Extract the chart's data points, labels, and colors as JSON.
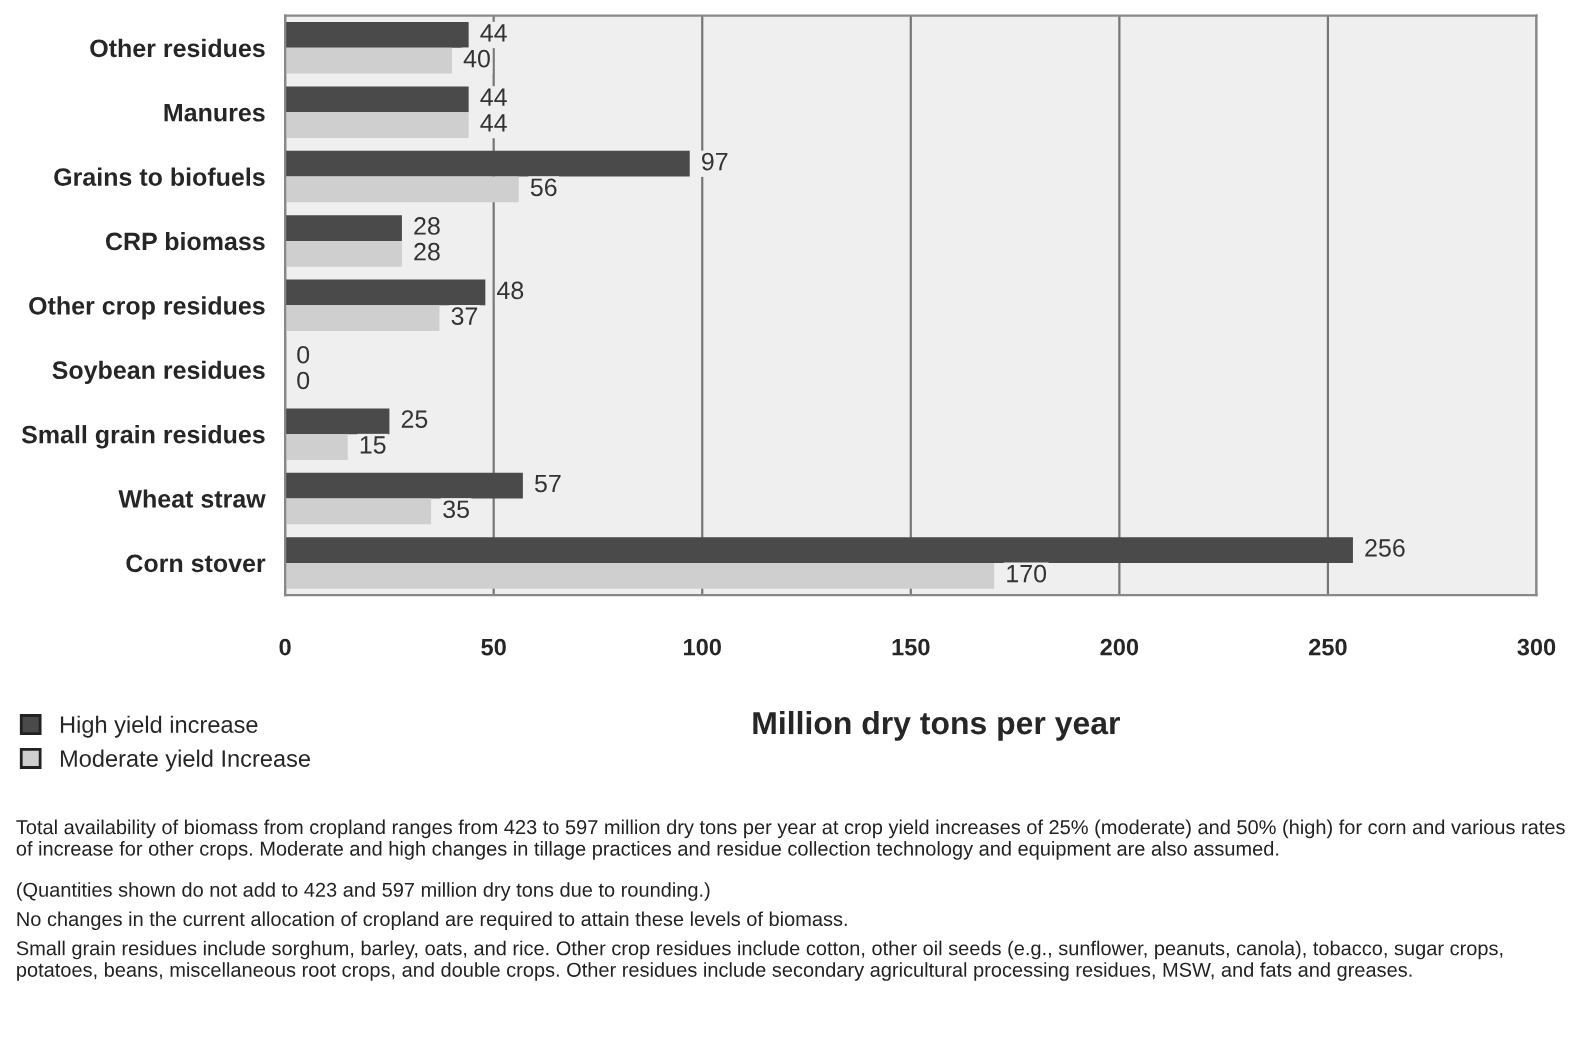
{
  "chart_data": {
    "type": "bar",
    "orientation": "horizontal",
    "categories": [
      "Other residues",
      "Manures",
      "Grains to biofuels",
      "CRP biomass",
      "Other crop residues",
      "Soybean residues",
      "Small grain residues",
      "Wheat straw",
      "Corn stover"
    ],
    "series": [
      {
        "name": "High yield increase",
        "color": "#4a4a4a",
        "values": [
          44,
          44,
          97,
          28,
          48,
          0,
          25,
          57,
          256
        ]
      },
      {
        "name": "Moderate yield Increase",
        "color": "#cfcfcf",
        "values": [
          40,
          44,
          56,
          28,
          37,
          0,
          15,
          35,
          170
        ]
      }
    ],
    "xlim": [
      0,
      300
    ],
    "xticks": [
      0,
      50,
      100,
      150,
      200,
      250,
      300
    ],
    "xlabel": "Million dry tons per year",
    "grid": "x",
    "legend": "bottom left",
    "data_labels": true,
    "annotations": [
      "Total availability of biomass from cropland ranges from 423 to 597 million dry tons per year at crop yield increases of 25% (moderate) and 50% (high) for corn and various rates of increase for other crops. Moderate and high changes in tillage practices and residue collection technology and equipment are also assumed.",
      "(Quantities shown do not add to 423 and 597 million dry tons due to rounding.)",
      "No changes in the current allocation of cropland are required to attain these levels of biomass.",
      "Small grain residues include sorghum, barley, oats, and rice. Other crop residues include cotton, other oil seeds (e.g., sunflower, peanuts, canola), tobacco, sugar crops, potatoes, beans, miscellaneous root crops, and double crops. Other residues include secondary agricultural processing residues, MSW, and fats and greases."
    ]
  }
}
